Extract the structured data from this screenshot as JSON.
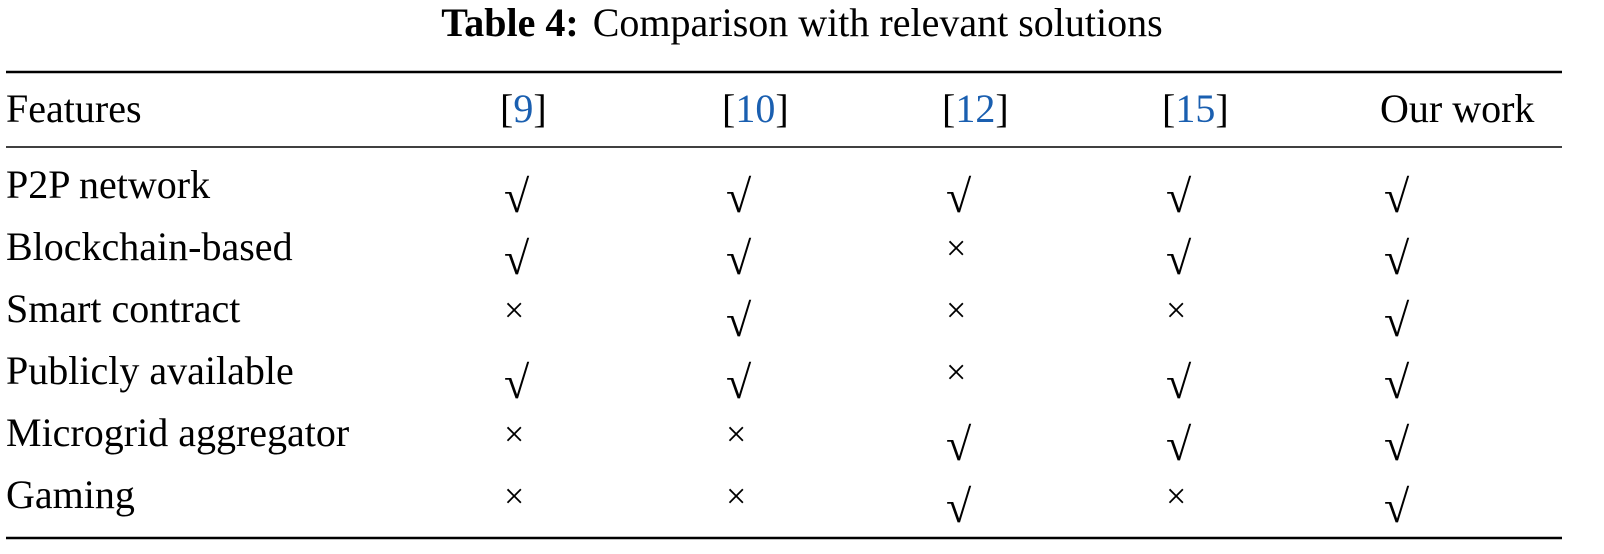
{
  "caption": {
    "label": "Table 4:",
    "text": "Comparison with relevant solutions"
  },
  "table": {
    "header": [
      "Features",
      "[9]",
      "[10]",
      "[12]",
      "[15]",
      "Our work"
    ],
    "rows": [
      [
        "P2P network",
        "√",
        "√",
        "√",
        "√",
        "√"
      ],
      [
        "Blockchain-based",
        "√",
        "√",
        "×",
        "√",
        "√"
      ],
      [
        "Smart contract",
        "×",
        "√",
        "×",
        "×",
        "√"
      ],
      [
        "Publicly available",
        "√",
        "√",
        "×",
        "√",
        "√"
      ],
      [
        "Microgrid aggregator",
        "×",
        "×",
        "√",
        "√",
        "√"
      ],
      [
        "Gaming",
        "×",
        "×",
        "√",
        "×",
        "√"
      ]
    ]
  }
}
